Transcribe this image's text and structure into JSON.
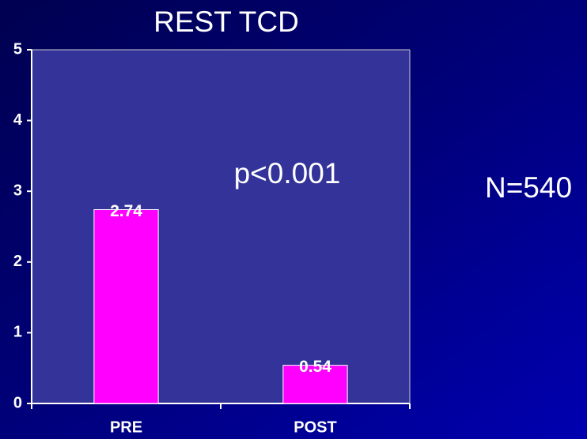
{
  "chart_data": {
    "type": "bar",
    "title": "REST TCD",
    "categories": [
      "PRE",
      "POST"
    ],
    "values": [
      2.74,
      0.54
    ],
    "color": "#ff00ff",
    "ylim": [
      0,
      5
    ],
    "yticks": [
      0,
      1,
      2,
      3,
      4,
      5
    ],
    "annotations": [
      "p<0.001",
      "N=540"
    ]
  }
}
